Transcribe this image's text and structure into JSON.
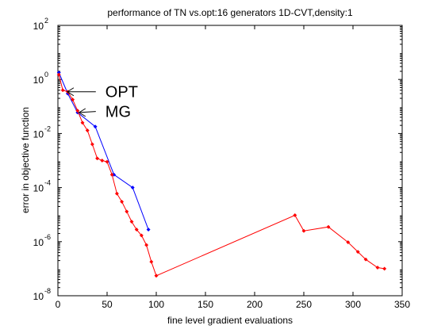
{
  "chart_data": {
    "type": "line",
    "title": "performance of TN vs.opt:16 generators 1D-CVT,density:1",
    "xlabel": "fine level gradient evaluations",
    "ylabel": "error in objective function",
    "xlim": [
      0,
      350
    ],
    "ylim": [
      1e-08,
      100
    ],
    "yscale": "log",
    "grid": false,
    "x_ticks": [
      0,
      50,
      100,
      150,
      200,
      250,
      300,
      350
    ],
    "y_ticks": [
      {
        "value": 1e-08,
        "base": "10",
        "exp": "-8"
      },
      {
        "value": 1e-06,
        "base": "10",
        "exp": "-6"
      },
      {
        "value": 0.0001,
        "base": "10",
        "exp": "-4"
      },
      {
        "value": 0.01,
        "base": "10",
        "exp": "-2"
      },
      {
        "value": 1,
        "base": "10",
        "exp": "0"
      },
      {
        "value": 100,
        "base": "10",
        "exp": "2"
      }
    ],
    "series": [
      {
        "color": "#0000ff",
        "x": [
          1,
          10,
          20,
          38,
          57,
          76,
          92
        ],
        "y": [
          1.8,
          0.3,
          0.06,
          0.018,
          0.0003,
          0.0001,
          2.8e-06
        ]
      },
      {
        "color": "#ff0000",
        "x": [
          1,
          5,
          10,
          15,
          20,
          25,
          30,
          35,
          40,
          45,
          50,
          55,
          60,
          65,
          70,
          75,
          80,
          85,
          90,
          95,
          100,
          241,
          250,
          275,
          295,
          305,
          313,
          325,
          332
        ],
        "y": [
          1.5,
          0.4,
          0.35,
          0.18,
          0.07,
          0.025,
          0.013,
          0.004,
          0.0012,
          0.001,
          0.0009,
          0.0003,
          6e-05,
          3e-05,
          1.3e-05,
          5.5e-06,
          2.8e-06,
          1.7e-06,
          7.5e-07,
          1.8e-07,
          5.5e-08,
          9.5e-06,
          2.5e-06,
          3.5e-06,
          9.5e-07,
          4.2e-07,
          2.2e-07,
          1.1e-07,
          1e-07
        ]
      }
    ],
    "annotations": [
      {
        "text": "OPT",
        "x": 8,
        "y": 0.35,
        "label_x": 45,
        "label_y": 0.35
      },
      {
        "text": "MG",
        "x": 20,
        "y": 0.06,
        "label_x": 45,
        "label_y": 0.065
      }
    ]
  }
}
